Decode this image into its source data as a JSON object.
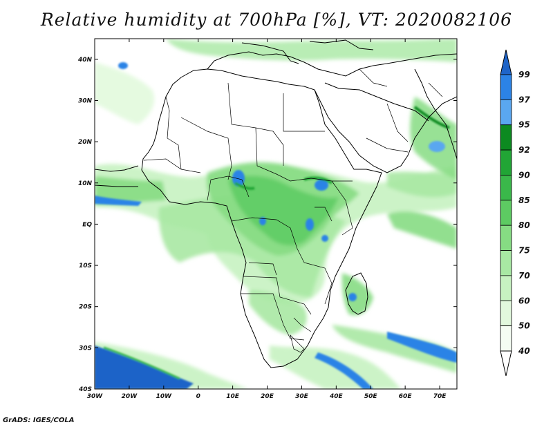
{
  "title": "Relative humidity at 700hPa [%], VT: 2020082106",
  "credit": "GrADS: IGES/COLA",
  "map": {
    "projection": "latlon",
    "lon_range": [
      -30,
      75
    ],
    "lat_range": [
      -40,
      45
    ],
    "lon_ticks": [
      "30W",
      "20W",
      "10W",
      "0",
      "10E",
      "20E",
      "30E",
      "40E",
      "50E",
      "60E",
      "70E"
    ],
    "lat_ticks": [
      "40S",
      "30S",
      "20S",
      "10S",
      "EQ",
      "10N",
      "20N",
      "30N",
      "40N"
    ],
    "field_variable": "relative humidity",
    "field_level": "700hPa",
    "field_units": "%"
  },
  "colorbar": {
    "levels": [
      "99",
      "97",
      "95",
      "92",
      "90",
      "85",
      "80",
      "75",
      "70",
      "60",
      "50",
      "40"
    ],
    "colors": [
      "#1e64c8",
      "#2c83e6",
      "#5aa7f0",
      "#0c8a20",
      "#21a535",
      "#3ab84a",
      "#5dcb62",
      "#86dc83",
      "#a8e8a3",
      "#c7f2c1",
      "#e2f9dd",
      "#f5fdf3"
    ]
  }
}
